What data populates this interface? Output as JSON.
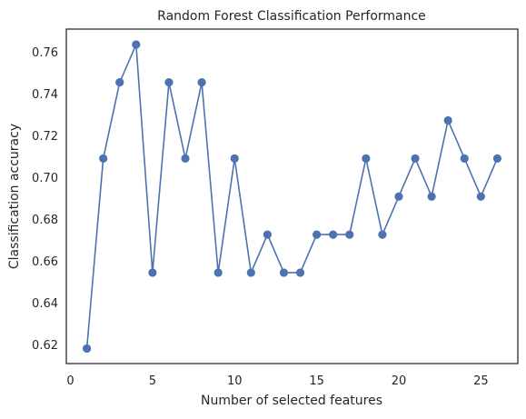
{
  "chart_data": {
    "type": "line",
    "title": "Random Forest Classification Performance",
    "xlabel": "Number of selected features",
    "ylabel": "Classification accuracy",
    "x": [
      1,
      2,
      3,
      4,
      5,
      6,
      7,
      8,
      9,
      10,
      11,
      12,
      13,
      14,
      15,
      16,
      17,
      18,
      19,
      20,
      21,
      22,
      23,
      24,
      25,
      26
    ],
    "series": [
      {
        "values": [
          0.6182,
          0.7091,
          0.7455,
          0.7636,
          0.6545,
          0.7455,
          0.7091,
          0.7455,
          0.6545,
          0.7091,
          0.6545,
          0.6727,
          0.6545,
          0.6545,
          0.6727,
          0.6727,
          0.6727,
          0.7091,
          0.6727,
          0.6909,
          0.7091,
          0.6909,
          0.7273,
          0.7091,
          0.6909,
          0.7091
        ],
        "color": "#4c72b0",
        "marker": "circle"
      }
    ],
    "xlim": [
      -0.25,
      27.25
    ],
    "ylim": [
      0.611,
      0.771
    ],
    "xticks": [
      0,
      5,
      10,
      15,
      20,
      25
    ],
    "yticks": [
      0.62,
      0.64,
      0.66,
      0.68,
      0.7,
      0.72,
      0.74,
      0.76
    ],
    "xtick_labels": [
      "0",
      "5",
      "10",
      "15",
      "20",
      "25"
    ],
    "ytick_labels": [
      "0.62",
      "0.64",
      "0.66",
      "0.68",
      "0.70",
      "0.72",
      "0.74",
      "0.76"
    ],
    "grid": false,
    "legend": "none"
  }
}
